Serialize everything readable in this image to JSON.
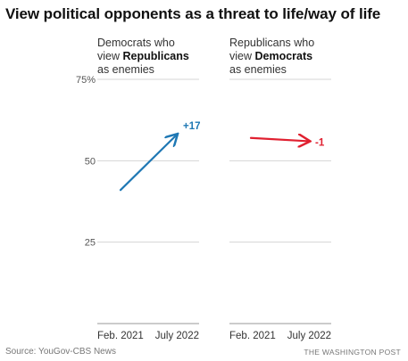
{
  "title": "View political opponents as a threat to life/way of life",
  "chart_data": [
    {
      "type": "line",
      "title_lines": [
        "Democrats who",
        "view ",
        "Republicans",
        "as enemies"
      ],
      "x": [
        "Feb. 2021",
        "July 2022"
      ],
      "values": [
        41,
        58
      ],
      "change_label": "+17",
      "color": "#1f78b4",
      "ylim": [
        0,
        75
      ],
      "yticks": [
        25,
        50,
        75
      ],
      "ytick_labels": [
        "25",
        "50",
        "75%"
      ]
    },
    {
      "type": "line",
      "title_lines": [
        "Republicans who",
        "view ",
        "Democrats",
        "as enemies"
      ],
      "x": [
        "Feb. 2021",
        "July 2022"
      ],
      "values": [
        57,
        56
      ],
      "change_label": "-1",
      "color": "#e02030",
      "ylim": [
        0,
        75
      ],
      "yticks": [
        25,
        50,
        75
      ]
    }
  ],
  "source": "Source: YouGov-CBS News",
  "credit": "THE WASHINGTON POST"
}
